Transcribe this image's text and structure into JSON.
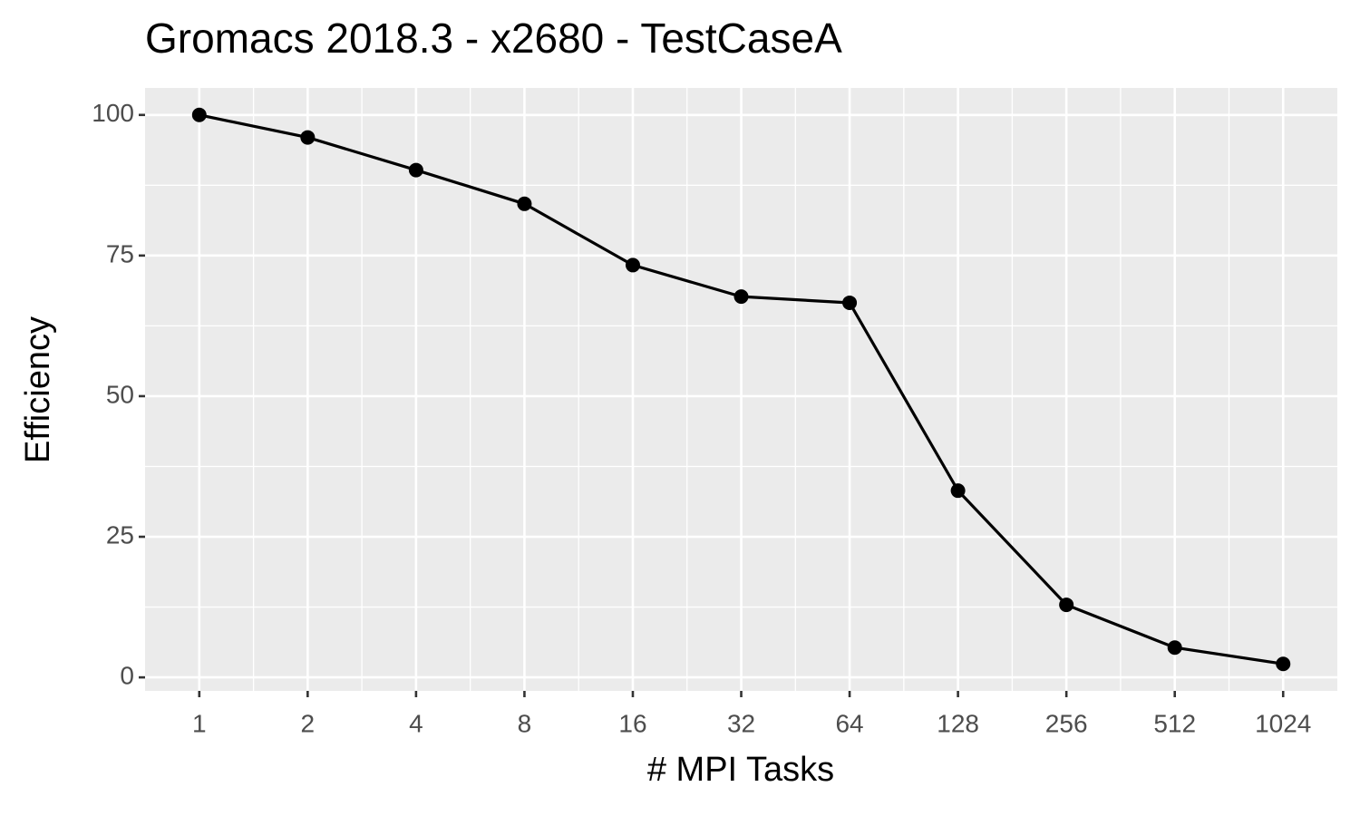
{
  "chart_data": {
    "type": "line",
    "title": "Gromacs 2018.3 - x2680 - TestCaseA",
    "x_label": "# MPI Tasks",
    "y_label": "Efficiency",
    "x": [
      1,
      2,
      4,
      8,
      16,
      32,
      64,
      128,
      256,
      512,
      1024
    ],
    "series": [
      {
        "name": "Efficiency",
        "color": "#000000",
        "values": [
          100,
          96,
          90.2,
          84.2,
          73.3,
          67.7,
          66.6,
          33.2,
          12.9,
          5.3,
          2.4
        ]
      }
    ],
    "xlog_base": 2,
    "xlim": [
      0.707,
      1448
    ],
    "xticks": [
      1,
      2,
      4,
      8,
      16,
      32,
      64,
      128,
      256,
      512,
      1024
    ],
    "ylim": [
      -2.4,
      104.8
    ],
    "yticks": [
      0,
      25,
      50,
      75,
      100
    ],
    "grid": true
  }
}
